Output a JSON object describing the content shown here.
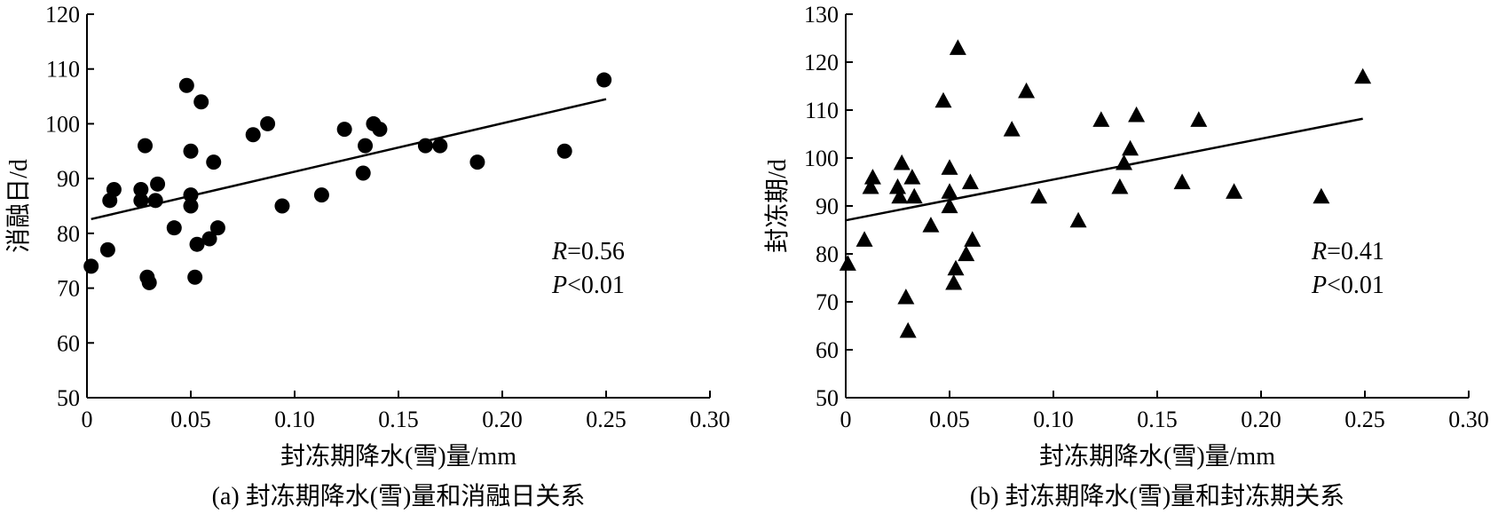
{
  "chart_data": [
    {
      "type": "scatter",
      "caption": "(a) 封冻期降水(雪)量和消融日关系",
      "xlabel": "封冻期降水(雪)量/mm",
      "ylabel": "消融日/d",
      "xlim": [
        0,
        0.3
      ],
      "ylim": [
        50,
        120
      ],
      "xticks": [
        "0",
        "0.05",
        "0.10",
        "0.15",
        "0.20",
        "0.25",
        "0.30"
      ],
      "yticks": [
        "50",
        "60",
        "70",
        "80",
        "90",
        "100",
        "110",
        "120"
      ],
      "marker": "circle",
      "stat_r_label": "R",
      "stat_r_value": "=0.56",
      "stat_p_label": "P",
      "stat_p_value": "<0.01",
      "points": [
        [
          0.002,
          74
        ],
        [
          0.01,
          77
        ],
        [
          0.011,
          86
        ],
        [
          0.013,
          88
        ],
        [
          0.026,
          86
        ],
        [
          0.026,
          88
        ],
        [
          0.028,
          96
        ],
        [
          0.029,
          72
        ],
        [
          0.03,
          71
        ],
        [
          0.033,
          86
        ],
        [
          0.034,
          89
        ],
        [
          0.042,
          81
        ],
        [
          0.048,
          107
        ],
        [
          0.05,
          95
        ],
        [
          0.05,
          87
        ],
        [
          0.05,
          85
        ],
        [
          0.052,
          72
        ],
        [
          0.053,
          78
        ],
        [
          0.055,
          104
        ],
        [
          0.059,
          79
        ],
        [
          0.061,
          93
        ],
        [
          0.063,
          81
        ],
        [
          0.08,
          98
        ],
        [
          0.087,
          100
        ],
        [
          0.094,
          85
        ],
        [
          0.113,
          87
        ],
        [
          0.124,
          99
        ],
        [
          0.133,
          91
        ],
        [
          0.134,
          96
        ],
        [
          0.138,
          100
        ],
        [
          0.141,
          99
        ],
        [
          0.163,
          96
        ],
        [
          0.17,
          96
        ],
        [
          0.188,
          93
        ],
        [
          0.23,
          95
        ],
        [
          0.249,
          108
        ]
      ],
      "fit": {
        "x": [
          0.002,
          0.25
        ],
        "y": [
          82.6,
          104.5
        ]
      }
    },
    {
      "type": "scatter",
      "caption": "(b) 封冻期降水(雪)量和封冻期关系",
      "xlabel": "封冻期降水(雪)量/mm",
      "ylabel": "封冻期/d",
      "xlim": [
        0,
        0.3
      ],
      "ylim": [
        50,
        130
      ],
      "xticks": [
        "0",
        "0.05",
        "0.10",
        "0.15",
        "0.20",
        "0.25",
        "0.30"
      ],
      "yticks": [
        "50",
        "60",
        "70",
        "80",
        "90",
        "100",
        "110",
        "120",
        "130"
      ],
      "marker": "triangle",
      "stat_r_label": "R",
      "stat_r_value": "=0.41",
      "stat_p_label": "P",
      "stat_p_value": "<0.01",
      "points": [
        [
          0.001,
          78
        ],
        [
          0.009,
          83
        ],
        [
          0.012,
          94
        ],
        [
          0.013,
          96
        ],
        [
          0.025,
          94
        ],
        [
          0.026,
          92
        ],
        [
          0.027,
          99
        ],
        [
          0.029,
          71
        ],
        [
          0.03,
          64
        ],
        [
          0.032,
          96
        ],
        [
          0.033,
          92
        ],
        [
          0.041,
          86
        ],
        [
          0.047,
          112
        ],
        [
          0.05,
          90
        ],
        [
          0.05,
          93
        ],
        [
          0.05,
          98
        ],
        [
          0.052,
          74
        ],
        [
          0.053,
          77
        ],
        [
          0.054,
          123
        ],
        [
          0.058,
          80
        ],
        [
          0.06,
          95
        ],
        [
          0.061,
          83
        ],
        [
          0.08,
          106
        ],
        [
          0.087,
          114
        ],
        [
          0.093,
          92
        ],
        [
          0.112,
          87
        ],
        [
          0.123,
          108
        ],
        [
          0.132,
          94
        ],
        [
          0.134,
          99
        ],
        [
          0.137,
          102
        ],
        [
          0.14,
          109
        ],
        [
          0.162,
          95
        ],
        [
          0.17,
          108
        ],
        [
          0.187,
          93
        ],
        [
          0.229,
          92
        ],
        [
          0.249,
          117
        ]
      ],
      "fit": {
        "x": [
          0.0,
          0.249
        ],
        "y": [
          87.0,
          108.2
        ]
      }
    }
  ]
}
